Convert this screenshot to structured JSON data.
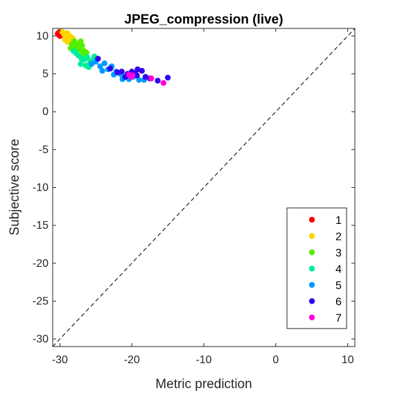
{
  "chart_data": {
    "type": "scatter",
    "title": "JPEG_compression (live)",
    "xlabel": "Metric prediction",
    "ylabel": "Subjective score",
    "xlim": [
      -31,
      11
    ],
    "ylim": [
      -31,
      11
    ],
    "xticks": [
      -30,
      -20,
      -10,
      0,
      10
    ],
    "yticks": [
      -30,
      -25,
      -20,
      -15,
      -10,
      -5,
      0,
      5,
      10
    ],
    "xtick_labels": [
      "-30",
      "-20",
      "-10",
      "0",
      "10"
    ],
    "ytick_labels": [
      "-30",
      "-25",
      "-20",
      "-15",
      "-10",
      "-5",
      "0",
      "5",
      "10"
    ],
    "reference_line": "y = x, dashed",
    "grid": false,
    "legend_position": "bottom-right",
    "series": [
      {
        "name": "1",
        "color": "#ff0000",
        "points": [
          [
            -30.3,
            10.3
          ],
          [
            -30.1,
            10.5
          ],
          [
            -29.9,
            10.4
          ],
          [
            -29.8,
            10.2
          ],
          [
            -30.0,
            10.0
          ],
          [
            -29.6,
            10.3
          ],
          [
            -29.5,
            10.1
          ],
          [
            -30.2,
            10.2
          ]
        ]
      },
      {
        "name": "2",
        "color": "#ffd700",
        "points": [
          [
            -29.7,
            10.6
          ],
          [
            -29.4,
            10.2
          ],
          [
            -29.2,
            9.8
          ],
          [
            -29.0,
            10.4
          ],
          [
            -28.8,
            9.6
          ],
          [
            -28.6,
            10.0
          ],
          [
            -28.4,
            9.4
          ],
          [
            -28.9,
            9.2
          ],
          [
            -28.2,
            9.7
          ],
          [
            -29.3,
            9.5
          ]
        ]
      },
      {
        "name": "3",
        "color": "#55ee00",
        "points": [
          [
            -28.3,
            8.9
          ],
          [
            -28.0,
            9.3
          ],
          [
            -27.7,
            8.6
          ],
          [
            -27.5,
            9.0
          ],
          [
            -27.2,
            8.2
          ],
          [
            -26.9,
            8.7
          ],
          [
            -26.6,
            8.0
          ],
          [
            -27.8,
            8.3
          ],
          [
            -26.8,
            7.6
          ],
          [
            -28.5,
            8.4
          ],
          [
            -27.1,
            9.3
          ],
          [
            -26.3,
            7.8
          ]
        ]
      },
      {
        "name": "4",
        "color": "#00ee99",
        "points": [
          [
            -28.1,
            8.0
          ],
          [
            -27.7,
            7.7
          ],
          [
            -27.4,
            7.4
          ],
          [
            -27.0,
            7.0
          ],
          [
            -26.6,
            6.9
          ],
          [
            -26.2,
            7.2
          ],
          [
            -25.8,
            6.6
          ],
          [
            -25.4,
            6.9
          ],
          [
            -26.0,
            5.9
          ],
          [
            -25.2,
            7.3
          ],
          [
            -27.1,
            6.3
          ],
          [
            -26.4,
            6.1
          ]
        ]
      },
      {
        "name": "5",
        "color": "#0099ff",
        "points": [
          [
            -25.6,
            6.3
          ],
          [
            -25.0,
            6.6
          ],
          [
            -24.4,
            6.0
          ],
          [
            -23.8,
            6.4
          ],
          [
            -23.3,
            5.6
          ],
          [
            -22.8,
            6.0
          ],
          [
            -22.2,
            5.3
          ],
          [
            -21.6,
            5.0
          ],
          [
            -21.0,
            4.6
          ],
          [
            -20.4,
            4.3
          ],
          [
            -19.8,
            4.6
          ],
          [
            -19.0,
            4.2
          ],
          [
            -18.3,
            4.2
          ],
          [
            -24.1,
            5.4
          ],
          [
            -22.5,
            4.9
          ],
          [
            -21.3,
            4.3
          ]
        ]
      },
      {
        "name": "6",
        "color": "#3300ee",
        "points": [
          [
            -24.7,
            7.0
          ],
          [
            -23.0,
            5.7
          ],
          [
            -22.0,
            5.2
          ],
          [
            -21.4,
            5.3
          ],
          [
            -20.6,
            5.0
          ],
          [
            -20.0,
            5.3
          ],
          [
            -19.6,
            5.1
          ],
          [
            -19.2,
            5.6
          ],
          [
            -18.6,
            5.4
          ],
          [
            -18.1,
            4.6
          ],
          [
            -17.5,
            4.4
          ],
          [
            -16.4,
            4.1
          ],
          [
            -15.0,
            4.5
          ],
          [
            -20.9,
            4.6
          ],
          [
            -19.3,
            4.8
          ]
        ]
      },
      {
        "name": "7",
        "color": "#ff00dd",
        "points": [
          [
            -20.4,
            4.9
          ],
          [
            -20.1,
            4.6
          ],
          [
            -19.9,
            4.8
          ],
          [
            -17.3,
            4.4
          ],
          [
            -15.6,
            3.8
          ]
        ]
      }
    ]
  }
}
